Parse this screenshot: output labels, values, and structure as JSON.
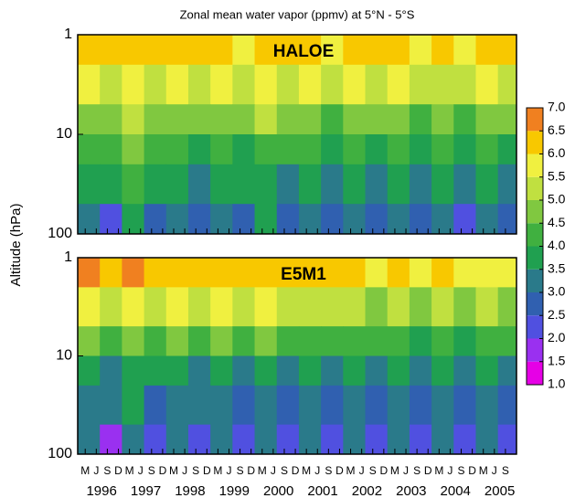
{
  "chart_data": {
    "type": "heatmap",
    "title": "Zonal mean water vapor (ppmv) at 5°N - 5°S",
    "y_label": "Altitude (hPa)",
    "y_log": true,
    "xlim": [
      1996.0,
      2005.92
    ],
    "ylim": [
      100,
      1
    ],
    "yticks": [
      1,
      10,
      100
    ],
    "xticks": [
      {
        "value": 1996.17,
        "label": "M"
      },
      {
        "value": 1996.42,
        "label": "J"
      },
      {
        "value": 1996.67,
        "label": "S"
      },
      {
        "value": 1996.92,
        "label": "D"
      },
      {
        "value": 1997.17,
        "label": "M"
      },
      {
        "value": 1997.42,
        "label": "J"
      },
      {
        "value": 1997.67,
        "label": "S"
      },
      {
        "value": 1997.92,
        "label": "D"
      },
      {
        "value": 1998.17,
        "label": "M"
      },
      {
        "value": 1998.42,
        "label": "J"
      },
      {
        "value": 1998.67,
        "label": "S"
      },
      {
        "value": 1998.92,
        "label": "D"
      },
      {
        "value": 1999.17,
        "label": "M"
      },
      {
        "value": 1999.42,
        "label": "J"
      },
      {
        "value": 1999.67,
        "label": "S"
      },
      {
        "value": 1999.92,
        "label": "D"
      },
      {
        "value": 2000.17,
        "label": "M"
      },
      {
        "value": 2000.42,
        "label": "J"
      },
      {
        "value": 2000.67,
        "label": "S"
      },
      {
        "value": 2000.92,
        "label": "D"
      },
      {
        "value": 2001.17,
        "label": "M"
      },
      {
        "value": 2001.42,
        "label": "J"
      },
      {
        "value": 2001.67,
        "label": "S"
      },
      {
        "value": 2001.92,
        "label": "D"
      },
      {
        "value": 2002.17,
        "label": "M"
      },
      {
        "value": 2002.42,
        "label": "J"
      },
      {
        "value": 2002.67,
        "label": "S"
      },
      {
        "value": 2002.92,
        "label": "D"
      },
      {
        "value": 2003.17,
        "label": "M"
      },
      {
        "value": 2003.42,
        "label": "J"
      },
      {
        "value": 2003.67,
        "label": "S"
      },
      {
        "value": 2003.92,
        "label": "D"
      },
      {
        "value": 2004.17,
        "label": "M"
      },
      {
        "value": 2004.42,
        "label": "J"
      },
      {
        "value": 2004.67,
        "label": "S"
      },
      {
        "value": 2004.92,
        "label": "D"
      },
      {
        "value": 2005.17,
        "label": "M"
      },
      {
        "value": 2005.42,
        "label": "J"
      },
      {
        "value": 2005.67,
        "label": "S"
      }
    ],
    "year_labels": [
      {
        "value": 1996.54,
        "label": "1996"
      },
      {
        "value": 1997.54,
        "label": "1997"
      },
      {
        "value": 1998.54,
        "label": "1998"
      },
      {
        "value": 1999.54,
        "label": "1999"
      },
      {
        "value": 2000.54,
        "label": "2000"
      },
      {
        "value": 2001.54,
        "label": "2001"
      },
      {
        "value": 2002.54,
        "label": "2002"
      },
      {
        "value": 2003.54,
        "label": "2003"
      },
      {
        "value": 2004.54,
        "label": "2004"
      },
      {
        "value": 2005.54,
        "label": "2005"
      }
    ],
    "x_edges": [
      1996.0,
      1996.5,
      1997.0,
      1997.5,
      1998.0,
      1998.5,
      1999.0,
      1999.5,
      2000.0,
      2000.5,
      2001.0,
      2001.5,
      2002.0,
      2002.5,
      2003.0,
      2003.5,
      2004.0,
      2004.5,
      2005.0,
      2005.5,
      2005.92
    ],
    "y_edges": [
      1,
      2,
      5,
      10,
      20,
      50,
      100
    ],
    "panels": [
      {
        "label": "HALOE",
        "values": [
          [
            6.3,
            6.1,
            6.4,
            6.0,
            6.3,
            6.1,
            6.2,
            5.9,
            6.3,
            6.0,
            6.1,
            5.9,
            6.2,
            6.0,
            6.3,
            5.9,
            6.1,
            5.9,
            6.2,
            6.0
          ],
          [
            5.6,
            5.4,
            5.7,
            5.3,
            5.6,
            5.4,
            5.5,
            5.2,
            5.6,
            5.3,
            5.5,
            5.3,
            5.6,
            5.4,
            5.5,
            5.2,
            5.4,
            5.3,
            5.5,
            5.3
          ],
          [
            4.9,
            4.6,
            5.1,
            4.7,
            4.9,
            4.5,
            4.8,
            4.6,
            5.0,
            4.6,
            4.8,
            4.4,
            4.7,
            4.5,
            4.8,
            4.4,
            4.6,
            4.4,
            4.7,
            4.5
          ],
          [
            4.3,
            4.0,
            4.5,
            4.1,
            4.4,
            3.9,
            4.2,
            3.9,
            4.4,
            4.0,
            4.2,
            3.8,
            4.1,
            3.8,
            4.2,
            3.7,
            4.0,
            3.7,
            4.1,
            3.8
          ],
          [
            3.8,
            3.6,
            4.1,
            3.5,
            3.9,
            3.4,
            3.8,
            3.6,
            3.9,
            3.4,
            3.7,
            3.3,
            3.6,
            3.4,
            3.7,
            3.3,
            3.5,
            3.2,
            3.6,
            3.4
          ],
          [
            3.2,
            2.4,
            3.6,
            2.8,
            3.4,
            2.6,
            3.3,
            2.9,
            3.5,
            2.7,
            3.3,
            2.8,
            3.4,
            2.6,
            3.2,
            2.5,
            3.1,
            2.2,
            3.4,
            2.7
          ]
        ]
      },
      {
        "label": "E5M1",
        "values": [
          [
            6.5,
            6.3,
            6.6,
            6.2,
            6.4,
            6.1,
            6.4,
            6.0,
            6.3,
            6.1,
            6.2,
            6.0,
            6.3,
            5.9,
            6.1,
            5.8,
            6.0,
            5.7,
            5.9,
            5.6
          ],
          [
            5.7,
            5.4,
            5.8,
            5.3,
            5.6,
            5.2,
            5.5,
            5.1,
            5.6,
            5.2,
            5.4,
            5.0,
            5.3,
            4.9,
            5.2,
            4.9,
            5.1,
            4.8,
            5.0,
            4.8
          ],
          [
            4.6,
            4.2,
            4.8,
            4.3,
            4.6,
            4.1,
            4.5,
            4.2,
            4.6,
            4.1,
            4.4,
            4.0,
            4.4,
            4.0,
            4.3,
            3.9,
            4.2,
            3.9,
            4.3,
            4.0
          ],
          [
            3.8,
            3.4,
            3.9,
            3.5,
            3.8,
            3.3,
            3.7,
            3.4,
            3.8,
            3.3,
            3.7,
            3.3,
            3.6,
            3.2,
            3.7,
            3.3,
            3.6,
            3.2,
            3.7,
            3.4
          ],
          [
            3.4,
            3.0,
            3.5,
            2.9,
            3.4,
            3.0,
            3.3,
            2.9,
            3.4,
            2.8,
            3.3,
            2.9,
            3.2,
            2.8,
            3.3,
            2.9,
            3.2,
            2.8,
            3.3,
            2.9
          ],
          [
            3.0,
            1.9,
            3.2,
            2.3,
            3.1,
            2.2,
            3.0,
            2.4,
            3.2,
            2.2,
            3.0,
            2.3,
            3.1,
            2.1,
            3.0,
            2.3,
            3.1,
            2.2,
            3.0,
            2.4
          ]
        ]
      }
    ],
    "colorbar": {
      "levels": [
        {
          "value": 1,
          "label": "1.0"
        },
        1.5,
        {
          "value": 2,
          "label": "2.0"
        },
        2.5,
        {
          "value": 3,
          "label": "3.0"
        },
        3.5,
        {
          "value": 4,
          "label": "4.0"
        },
        4.5,
        {
          "value": 5,
          "label": "5.0"
        },
        5.5,
        {
          "value": 6,
          "label": "6.0"
        },
        6.5,
        {
          "value": 7,
          "label": "7.0"
        }
      ],
      "colors": [
        "#e600e6",
        "#9a30f0",
        "#5050e0",
        "#3060b0",
        "#2a7a8a",
        "#20a050",
        "#40b040",
        "#80c840",
        "#c0e040",
        "#f0f040",
        "#f8c800",
        "#f08020"
      ]
    }
  }
}
